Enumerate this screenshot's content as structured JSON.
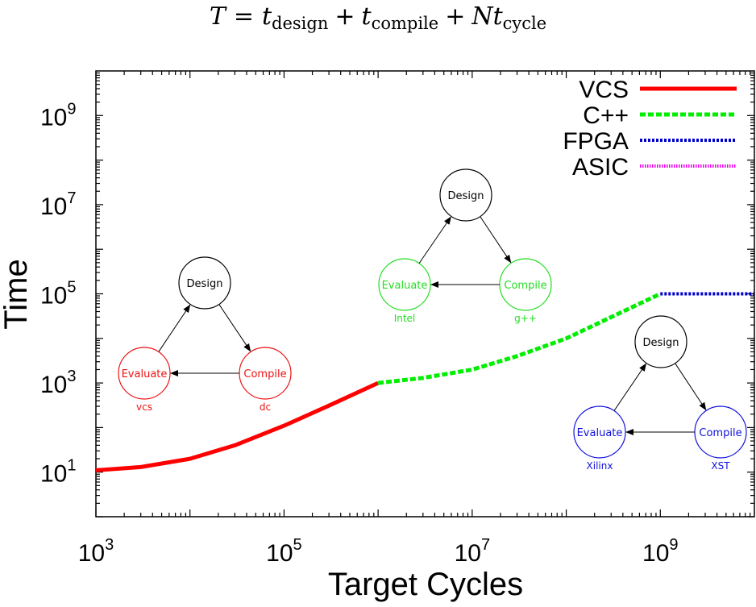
{
  "chart_data": {
    "type": "line",
    "title_parts": {
      "T": "T",
      "eq": "=",
      "t1": "t",
      "sub1": "design",
      "plus1": "+",
      "t2": "t",
      "sub2": "compile",
      "plus2": "+",
      "N": "N",
      "t3": "t",
      "sub3": "cycle"
    },
    "xlabel": "Target Cycles",
    "ylabel": "Time",
    "x_scale": "log",
    "y_scale": "log",
    "xlim": [
      1000,
      10000000000
    ],
    "ylim": [
      1,
      10000000000
    ],
    "x_ticks": [
      {
        "base": "10",
        "exp": "3",
        "value": 1000
      },
      {
        "base": "10",
        "exp": "5",
        "value": 100000
      },
      {
        "base": "10",
        "exp": "7",
        "value": 10000000
      },
      {
        "base": "10",
        "exp": "9",
        "value": 1000000000
      }
    ],
    "y_ticks": [
      {
        "base": "10",
        "exp": "1",
        "value": 10
      },
      {
        "base": "10",
        "exp": "3",
        "value": 1000
      },
      {
        "base": "10",
        "exp": "5",
        "value": 100000
      },
      {
        "base": "10",
        "exp": "7",
        "value": 10000000
      },
      {
        "base": "10",
        "exp": "9",
        "value": 1000000000
      }
    ],
    "grid": false,
    "legend_position": "top-right",
    "series": [
      {
        "name": "VCS",
        "color": "#ff0000",
        "style": "solid",
        "x": [
          1000,
          3000,
          10000,
          30000,
          100000,
          300000,
          1000000
        ],
        "y": [
          11,
          13,
          20,
          40,
          110,
          310,
          1000
        ]
      },
      {
        "name": "C++",
        "color": "#00ee00",
        "style": "dashed",
        "x": [
          1000000,
          3000000,
          10000000,
          30000000,
          100000000,
          300000000,
          1000000000
        ],
        "y": [
          1000,
          1300,
          2000,
          4000,
          10000,
          30000,
          100000
        ]
      },
      {
        "name": "FPGA",
        "color": "#0000cc",
        "style": "dotted",
        "x": [
          1000000000,
          3000000000,
          10000000000
        ],
        "y": [
          100000,
          100000,
          100000
        ]
      },
      {
        "name": "ASIC",
        "color": "#ee00ee",
        "style": "dotted-fine",
        "x": [],
        "y": []
      }
    ],
    "annotations": [
      {
        "id": "vcs-flow",
        "color": "#ee1111",
        "nodes": {
          "design": "Design",
          "evaluate": "Evaluate",
          "compile": "Compile"
        },
        "tools": {
          "evaluate": "vcs",
          "compile": "dc"
        }
      },
      {
        "id": "cpp-flow",
        "color": "#22dd22",
        "nodes": {
          "design": "Design",
          "evaluate": "Evaluate",
          "compile": "Compile"
        },
        "tools": {
          "evaluate": "Intel",
          "compile": "g++"
        }
      },
      {
        "id": "fpga-flow",
        "color": "#1111dd",
        "nodes": {
          "design": "Design",
          "evaluate": "Evaluate",
          "compile": "Compile"
        },
        "tools": {
          "evaluate": "Xilinx",
          "compile": "XST"
        }
      }
    ]
  }
}
